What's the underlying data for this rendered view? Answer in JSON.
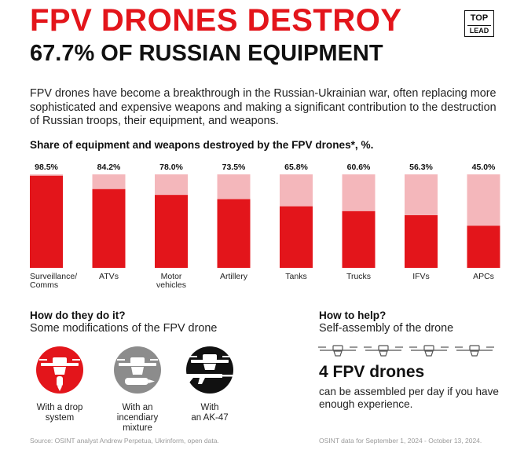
{
  "title_line1": "FPV DRONES DESTROY",
  "title_line2": "67.7% OF RUSSIAN EQUIPMENT",
  "logo": {
    "top": "TOP",
    "bottom": "LEAD"
  },
  "intro": "FPV drones have become a breakthrough in the Russian-Ukrainian war, often replacing more sophisticated and expensive weapons and making a significant contribution to the destruction of Russian troops, their equipment, and weapons.",
  "chart_data": {
    "type": "bar",
    "title": "Share of equipment and weapons destroyed by the FPV drones*, %.",
    "categories": [
      [
        "Surveillance/",
        "Comms"
      ],
      [
        "ATVs"
      ],
      [
        "Motor",
        "vehicles"
      ],
      [
        "Artillery"
      ],
      [
        "Tanks"
      ],
      [
        "Trucks"
      ],
      [
        "IFVs"
      ],
      [
        "APCs"
      ]
    ],
    "values": [
      98.5,
      84.2,
      78.0,
      73.5,
      65.8,
      60.6,
      56.3,
      45.0
    ],
    "value_labels": [
      "98.5%",
      "84.2%",
      "78.0%",
      "73.5%",
      "65.8%",
      "60.6%",
      "56.3%",
      "45.0%"
    ],
    "ylim": [
      0,
      100
    ],
    "xlabel": "",
    "ylabel": "",
    "colors": {
      "destroyed": "#e3151b",
      "remaining": "#f4b7bb"
    }
  },
  "how": {
    "title": "How do they do it?",
    "subtitle": "Some modifications of the FPV drone",
    "mods": [
      {
        "caption": [
          "With a drop",
          "system"
        ],
        "icon": "drone-drop-system-icon",
        "color": "#e3151b"
      },
      {
        "caption": [
          "With an",
          "incendiary mixture"
        ],
        "icon": "drone-incendiary-icon",
        "color": "#8c8c8c"
      },
      {
        "caption": [
          "With",
          "an AK-47"
        ],
        "icon": "drone-ak47-icon",
        "color": "#111111"
      }
    ]
  },
  "help": {
    "title": "How to help?",
    "subtitle": "Self-assembly of the drone",
    "big": "4 FPV drones",
    "big_sub": "can be assembled per day if you have enough experience."
  },
  "source_left": "Source: OSINT analyst Andrew Perpetua, Ukrinform, open data.",
  "source_right": "OSINT data for September 1, 2024 - October 13, 2024."
}
